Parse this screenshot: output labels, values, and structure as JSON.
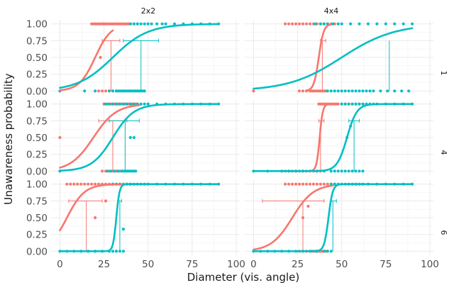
{
  "chart_data": {
    "type": "scatter",
    "title": "",
    "xlabel": "Diameter (vis. angle)",
    "ylabel": "Unawareness probability",
    "xlim": [
      -5,
      102
    ],
    "ylim": [
      -0.06,
      1.06
    ],
    "x_ticks": [
      0,
      25,
      50,
      75,
      100
    ],
    "y_ticks": [
      0.0,
      0.25,
      0.5,
      0.75,
      1.0
    ],
    "x_tick_labels": [
      "0",
      "25",
      "50",
      "75",
      "100"
    ],
    "y_tick_labels": [
      "0.00",
      "0.25",
      "0.50",
      "0.75",
      "1.00"
    ],
    "grid": true,
    "legend": "none",
    "column_facets": [
      "2x2",
      "4x4"
    ],
    "row_facets": [
      "1",
      "4",
      "6"
    ],
    "colors": {
      "red": "#F8766D",
      "teal": "#00BFC4",
      "grid": "#ebebeb"
    },
    "panels": [
      {
        "col": "2x2",
        "row": "1",
        "curves": [
          {
            "color": "red",
            "x0": 20,
            "scale": 4.5,
            "x_start": 0,
            "x_end": 30
          },
          {
            "color": "teal",
            "x0": 30,
            "scale": 10,
            "x_start": 0,
            "x_end": 90
          }
        ],
        "threshold_lines": [
          {
            "color": "red",
            "x": 29,
            "y": 0.75,
            "xmin": 24,
            "xmax": 34
          },
          {
            "color": "teal",
            "x": 46,
            "y": 0.75,
            "xmin": 36,
            "xmax": 56
          }
        ],
        "points": [
          {
            "color": "red",
            "y": 1,
            "x": [
              18,
              19,
              20,
              21,
              22,
              23,
              24,
              25,
              26,
              27,
              28,
              29,
              30,
              31,
              32,
              33,
              34,
              35,
              36,
              37,
              38,
              39,
              40,
              42,
              44
            ]
          },
          {
            "color": "red",
            "y": 0.5,
            "x": [
              23
            ]
          },
          {
            "color": "red",
            "y": 0,
            "x": [
              22,
              24,
              26,
              28,
              30,
              32,
              36,
              40,
              43
            ]
          },
          {
            "color": "teal",
            "y": 1,
            "x": [
              40,
              42,
              44,
              46,
              48,
              50,
              52,
              55,
              58,
              60,
              65,
              70,
              75,
              80,
              85,
              90
            ]
          },
          {
            "color": "teal",
            "y": 0,
            "x": [
              0,
              14,
              20,
              28,
              30,
              32,
              33,
              34,
              35,
              36,
              37,
              38,
              39,
              40,
              41,
              42,
              43,
              44,
              45,
              46,
              47,
              48
            ]
          }
        ]
      },
      {
        "col": "4x4",
        "row": "1",
        "curves": [
          {
            "color": "red",
            "x0": 37,
            "scale": 1.4,
            "x_start": 30,
            "x_end": 44
          },
          {
            "color": "teal",
            "x0": 50,
            "scale": 15,
            "x_start": 0,
            "x_end": 90
          }
        ],
        "threshold_lines": [
          {
            "color": "red",
            "x": 39,
            "y": 0.75,
            "xmin": 38,
            "xmax": 41
          },
          {
            "color": "teal",
            "x": 77,
            "y": 0.75,
            "xmin": 77,
            "xmax": 77
          }
        ],
        "points": [
          {
            "color": "red",
            "y": 1,
            "x": [
              18,
              20,
              22,
              24,
              26,
              28,
              30,
              32,
              34,
              36,
              38,
              40,
              42,
              44,
              46
            ]
          },
          {
            "color": "red",
            "y": 0,
            "x": [
              0,
              26,
              28,
              30,
              32,
              33,
              34,
              35,
              36,
              37,
              38,
              39,
              40,
              41
            ]
          },
          {
            "color": "teal",
            "y": 1,
            "x": [
              35,
              38,
              40,
              42,
              45,
              48,
              50,
              55,
              60,
              65,
              70,
              75,
              80,
              85,
              90
            ]
          },
          {
            "color": "teal",
            "y": 0,
            "x": [
              42,
              44,
              46,
              48,
              50,
              52,
              54,
              56,
              58,
              60,
              62,
              64,
              66,
              68,
              72,
              76,
              80,
              84,
              88
            ]
          }
        ]
      },
      {
        "col": "2x2",
        "row": "4",
        "curves": [
          {
            "color": "red",
            "x0": 19,
            "scale": 6.5,
            "x_start": 0,
            "x_end": 45
          },
          {
            "color": "teal",
            "x0": 30,
            "scale": 6.0,
            "x_start": 0,
            "x_end": 90
          }
        ],
        "threshold_lines": [
          {
            "color": "red",
            "x": 30,
            "y": 0.75,
            "xmin": 22,
            "xmax": 38
          },
          {
            "color": "teal",
            "x": 37,
            "y": 0.75,
            "xmin": 28,
            "xmax": 45
          }
        ],
        "points": [
          {
            "color": "red",
            "y": 1,
            "x": [
              25,
              27,
              29,
              30,
              31,
              32,
              33,
              34,
              35,
              36,
              37,
              38,
              39,
              40,
              41,
              42,
              43,
              44
            ]
          },
          {
            "color": "red",
            "y": 0.5,
            "x": [
              0
            ]
          },
          {
            "color": "red",
            "y": 0,
            "x": [
              24,
              26,
              28,
              30,
              32,
              34
            ]
          },
          {
            "color": "teal",
            "y": 1,
            "x": [
              26,
              28,
              30,
              32,
              34,
              36,
              38,
              40,
              42,
              44,
              46,
              48,
              50,
              55,
              60,
              65,
              70,
              75,
              80,
              85,
              90
            ]
          },
          {
            "color": "teal",
            "y": 0.5,
            "x": [
              40,
              42
            ]
          },
          {
            "color": "teal",
            "y": 0,
            "x": [
              0,
              27,
              29,
              31,
              33,
              35,
              36,
              37,
              38,
              39,
              40,
              41,
              42,
              43
            ]
          }
        ]
      },
      {
        "col": "4x4",
        "row": "4",
        "curves": [
          {
            "color": "red",
            "x0": 37.5,
            "scale": 0.9,
            "x_start": 32,
            "x_end": 44
          },
          {
            "color": "teal",
            "x0": 53,
            "scale": 2.8,
            "x_start": 0,
            "x_end": 90
          }
        ],
        "threshold_lines": [
          {
            "color": "red",
            "x": 38,
            "y": 0.75,
            "xmin": 37,
            "xmax": 40
          },
          {
            "color": "teal",
            "x": 57,
            "y": 0.75,
            "xmin": 54,
            "xmax": 60
          }
        ],
        "points": [
          {
            "color": "red",
            "y": 1,
            "x": [
              37,
              38,
              39,
              40,
              41,
              42,
              43,
              44,
              45,
              46,
              47,
              48,
              50,
              52,
              54,
              56,
              58,
              60,
              62
            ]
          },
          {
            "color": "red",
            "y": 0,
            "x": [
              18,
              20,
              22,
              24,
              26,
              28,
              30,
              32,
              34,
              36,
              38
            ]
          },
          {
            "color": "teal",
            "y": 1,
            "x": [
              50,
              52,
              54,
              56,
              58,
              60,
              62,
              64,
              66,
              68,
              70,
              75,
              80,
              85,
              90
            ]
          },
          {
            "color": "teal",
            "y": 0.67,
            "x": [
              55
            ]
          },
          {
            "color": "teal",
            "y": 0.5,
            "x": [
              53
            ]
          },
          {
            "color": "teal",
            "y": 0,
            "x": [
              0,
              8,
              16,
              20,
              24,
              28,
              36,
              40,
              44,
              46,
              48,
              50,
              52,
              54,
              56,
              58,
              60,
              62
            ]
          }
        ]
      },
      {
        "col": "2x2",
        "row": "6",
        "curves": [
          {
            "color": "red",
            "x0": 4,
            "scale": 5.0,
            "x_start": 0,
            "x_end": 45
          },
          {
            "color": "teal",
            "x0": 32,
            "scale": 0.9,
            "x_start": 0,
            "x_end": 90
          }
        ],
        "threshold_lines": [
          {
            "color": "red",
            "x": 15,
            "y": 0.75,
            "xmin": 5,
            "xmax": 24
          },
          {
            "color": "teal",
            "x": 34,
            "y": 0.75,
            "xmin": 33,
            "xmax": 35
          }
        ],
        "points": [
          {
            "color": "red",
            "y": 1,
            "x": [
              4,
              6,
              8,
              10,
              12,
              14,
              16,
              18,
              20,
              22,
              24,
              26,
              28,
              30,
              32,
              34,
              36,
              38,
              40
            ]
          },
          {
            "color": "red",
            "y": 0.75,
            "x": [
              26
            ]
          },
          {
            "color": "red",
            "y": 0.5,
            "x": [
              20
            ]
          },
          {
            "color": "red",
            "y": 0,
            "x": [
              12,
              16,
              20,
              24,
              28,
              32
            ]
          },
          {
            "color": "teal",
            "y": 1,
            "x": [
              30,
              32,
              34,
              36,
              38,
              40,
              42,
              44,
              46,
              48,
              50,
              55,
              60,
              65,
              70,
              75,
              80,
              85,
              90
            ]
          },
          {
            "color": "teal",
            "y": 0.33,
            "x": [
              36
            ]
          },
          {
            "color": "teal",
            "y": 0,
            "x": [
              0,
              4,
              8,
              12,
              16,
              20,
              24,
              28,
              30,
              32,
              34,
              36
            ]
          }
        ]
      },
      {
        "col": "4x4",
        "row": "6",
        "curves": [
          {
            "color": "red",
            "x0": 22,
            "scale": 6.0,
            "x_start": 0,
            "x_end": 45
          },
          {
            "color": "teal",
            "x0": 42.5,
            "scale": 1.2,
            "x_start": 0,
            "x_end": 90
          }
        ],
        "threshold_lines": [
          {
            "color": "red",
            "x": 28,
            "y": 0.75,
            "xmin": 5,
            "xmax": 40
          },
          {
            "color": "teal",
            "x": 45,
            "y": 0.75,
            "xmin": 44,
            "xmax": 47
          }
        ],
        "points": [
          {
            "color": "red",
            "y": 1,
            "x": [
              18,
              20,
              22,
              24,
              26,
              28,
              30,
              32,
              34,
              36,
              38,
              40,
              42,
              44,
              46
            ]
          },
          {
            "color": "red",
            "y": 0.67,
            "x": [
              31
            ]
          },
          {
            "color": "red",
            "y": 0.5,
            "x": [
              28
            ]
          },
          {
            "color": "red",
            "y": 0,
            "x": [
              26,
              28,
              30,
              32,
              33,
              34,
              35,
              36,
              37,
              38,
              39,
              40,
              41,
              42
            ]
          },
          {
            "color": "teal",
            "y": 1,
            "x": [
              44,
              46,
              48,
              50,
              52,
              54,
              56,
              58,
              60,
              62,
              65,
              70,
              75,
              80,
              85,
              90
            ]
          },
          {
            "color": "teal",
            "y": 0,
            "x": [
              0,
              4,
              8,
              12,
              16,
              20,
              24,
              28,
              32,
              36,
              40,
              42,
              44
            ]
          }
        ]
      }
    ]
  }
}
